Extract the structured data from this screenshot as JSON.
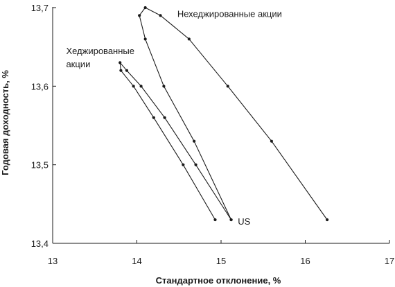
{
  "chart_data": {
    "type": "line",
    "title": "",
    "xlabel": "Стандартное отклонение, %",
    "ylabel": "Годовая доходность, %",
    "xlim": [
      13,
      17
    ],
    "ylim": [
      13.4,
      13.7
    ],
    "xticks": [
      13,
      14,
      15,
      16,
      17
    ],
    "yticks": [
      13.4,
      13.5,
      13.6,
      13.7
    ],
    "x_tick_labels": [
      "13",
      "14",
      "15",
      "16",
      "17"
    ],
    "y_tick_labels": [
      "13,4",
      "13,5",
      "13,6",
      "13,7"
    ],
    "grid": false,
    "legend": "none",
    "series": [
      {
        "points": [
          {
            "x": 15.12,
            "y": 13.43
          },
          {
            "x": 14.68,
            "y": 13.53
          },
          {
            "x": 14.32,
            "y": 13.6
          },
          {
            "x": 14.1,
            "y": 13.66
          },
          {
            "x": 14.03,
            "y": 13.69
          },
          {
            "x": 14.1,
            "y": 13.7
          },
          {
            "x": 14.28,
            "y": 13.69
          },
          {
            "x": 14.62,
            "y": 13.66
          },
          {
            "x": 15.08,
            "y": 13.6
          },
          {
            "x": 15.6,
            "y": 13.53
          },
          {
            "x": 16.26,
            "y": 13.43
          }
        ]
      },
      {
        "points": [
          {
            "x": 15.12,
            "y": 13.43
          },
          {
            "x": 14.7,
            "y": 13.5
          },
          {
            "x": 14.33,
            "y": 13.56
          },
          {
            "x": 14.05,
            "y": 13.6
          },
          {
            "x": 13.88,
            "y": 13.62
          },
          {
            "x": 13.8,
            "y": 13.63
          },
          {
            "x": 13.81,
            "y": 13.62
          },
          {
            "x": 13.96,
            "y": 13.6
          },
          {
            "x": 14.2,
            "y": 13.56
          },
          {
            "x": 14.55,
            "y": 13.5
          },
          {
            "x": 14.93,
            "y": 13.43
          }
        ]
      }
    ],
    "annotations": [
      {
        "text": "Нехеджированные акции",
        "x": 14.48,
        "y": 13.688
      },
      {
        "text": "Хеджированные",
        "x": 13.16,
        "y": 13.641
      },
      {
        "text": "акции",
        "x": 13.16,
        "y": 13.624
      },
      {
        "text": "US",
        "x": 15.2,
        "y": 13.424
      }
    ],
    "colors": {
      "line": "#1a1a1a",
      "marker": "#1a1a1a",
      "axis": "#1a1a1a"
    }
  }
}
